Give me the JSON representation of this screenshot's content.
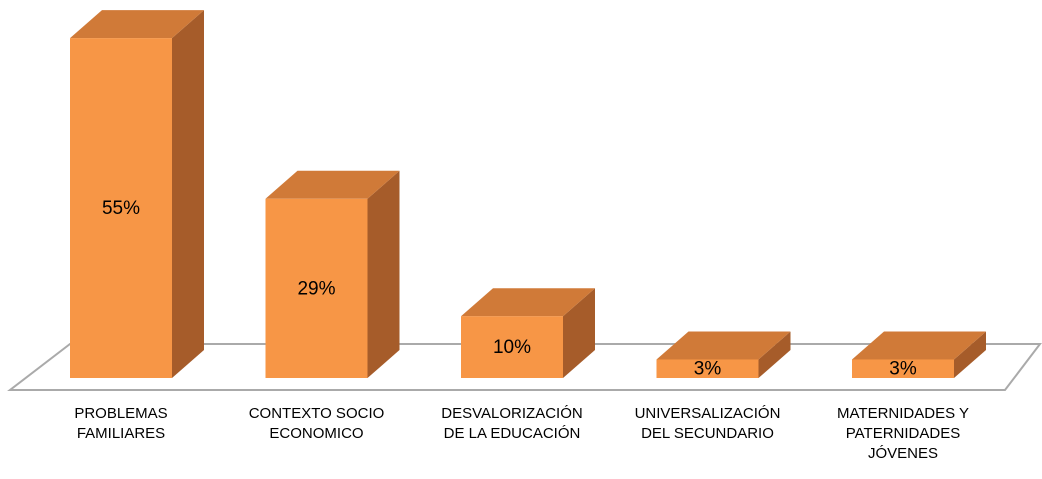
{
  "chart_data": {
    "type": "bar3d",
    "categories": [
      "PROBLEMAS\nFAMILIARES",
      "CONTEXTO SOCIO\nECONOMICO",
      "DESVALORIZACIÓN\nDE LA EDUCACIÓN",
      "UNIVERSALIZACIÓN\nDEL SECUNDARIO",
      "MATERNIDADES Y\nPATERNIDADES\nJÓVENES"
    ],
    "values": [
      55,
      29,
      10,
      3,
      3
    ],
    "value_labels": [
      "55%",
      "29%",
      "10%",
      "3%",
      "3%"
    ],
    "color": "#f79646"
  }
}
